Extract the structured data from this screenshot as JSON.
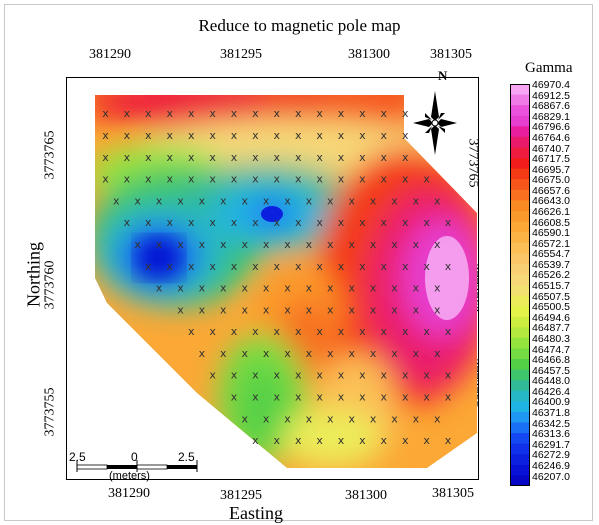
{
  "title": "Reduce to magnetic pole map",
  "x_axis_label": "Easting",
  "y_axis_label": "Northing",
  "top_ticks": [
    "381290",
    "381295",
    "381300",
    "381305"
  ],
  "bottom_ticks": [
    "381290",
    "381295",
    "381300",
    "381305"
  ],
  "left_ticks": [
    "3773765",
    "3773760",
    "3773755"
  ],
  "right_ticks": [
    "3773765",
    "3773760",
    "3773755"
  ],
  "north_label": "N",
  "scale_bar": {
    "left": "2.5",
    "mid": "0",
    "right": "2.5",
    "unit": "(meters)"
  },
  "legend": {
    "title": "Gamma",
    "values": [
      "46970.4",
      "46912.5",
      "46867.6",
      "46829.1",
      "46796.6",
      "46764.6",
      "46740.7",
      "46717.5",
      "46695.7",
      "46675.0",
      "46657.6",
      "46643.0",
      "46626.1",
      "46608.5",
      "46590.1",
      "46572.1",
      "46554.7",
      "46539.7",
      "46526.2",
      "46515.7",
      "46507.5",
      "46500.5",
      "46494.6",
      "46487.7",
      "46480.3",
      "46474.7",
      "46466.8",
      "46457.5",
      "46448.0",
      "46426.4",
      "46400.9",
      "46371.8",
      "46342.5",
      "46313.6",
      "46291.7",
      "46272.9",
      "46246.9",
      "46207.0"
    ],
    "colors": [
      "#f6a6f2",
      "#f07ae6",
      "#ea52db",
      "#e63ecf",
      "#e81e9e",
      "#ea1a6a",
      "#ee1c3e",
      "#f21c1c",
      "#f43a14",
      "#f6561a",
      "#f87020",
      "#fa8a24",
      "#fb9a2c",
      "#fba836",
      "#fbb444",
      "#fbbf56",
      "#fbc668",
      "#f9cf74",
      "#f6d878",
      "#f2e070",
      "#ecec5a",
      "#e4f24a",
      "#cdee40",
      "#b2ea3e",
      "#94e43e",
      "#74dc42",
      "#54d046",
      "#3ec46a",
      "#30ba98",
      "#26b8c4",
      "#20b4e4",
      "#1e98f2",
      "#1a70f4",
      "#1448f2",
      "#1030ea",
      "#0c20e0",
      "#0812d6",
      "#0606c6"
    ]
  },
  "stations": {
    "symbol": "x",
    "rows": [
      {
        "n": 3773767.2,
        "e_start": 381288.0,
        "e_end": 381302.0
      },
      {
        "n": 3773766.2,
        "e_start": 381288.0,
        "e_end": 381302.0
      },
      {
        "n": 3773765.2,
        "e_start": 381288.0,
        "e_end": 381302.5
      },
      {
        "n": 3773764.2,
        "e_start": 381288.0,
        "e_end": 381303.0
      },
      {
        "n": 3773763.2,
        "e_start": 381288.5,
        "e_end": 381303.5
      },
      {
        "n": 3773762.2,
        "e_start": 381289.0,
        "e_end": 381304.0
      },
      {
        "n": 3773761.2,
        "e_start": 381289.5,
        "e_end": 381304.0
      },
      {
        "n": 3773760.2,
        "e_start": 381290.0,
        "e_end": 381304.0
      },
      {
        "n": 3773759.2,
        "e_start": 381290.5,
        "e_end": 381304.0
      },
      {
        "n": 3773758.2,
        "e_start": 381291.5,
        "e_end": 381304.0
      },
      {
        "n": 3773757.2,
        "e_start": 381292.0,
        "e_end": 381304.0
      },
      {
        "n": 3773756.2,
        "e_start": 381292.5,
        "e_end": 381304.0
      },
      {
        "n": 3773755.2,
        "e_start": 381293.0,
        "e_end": 381304.0
      },
      {
        "n": 3773754.2,
        "e_start": 381294.0,
        "e_end": 381304.0
      },
      {
        "n": 3773753.2,
        "e_start": 381294.5,
        "e_end": 381304.0
      },
      {
        "n": 3773752.2,
        "e_start": 381295.0,
        "e_end": 381304.0
      }
    ]
  }
}
